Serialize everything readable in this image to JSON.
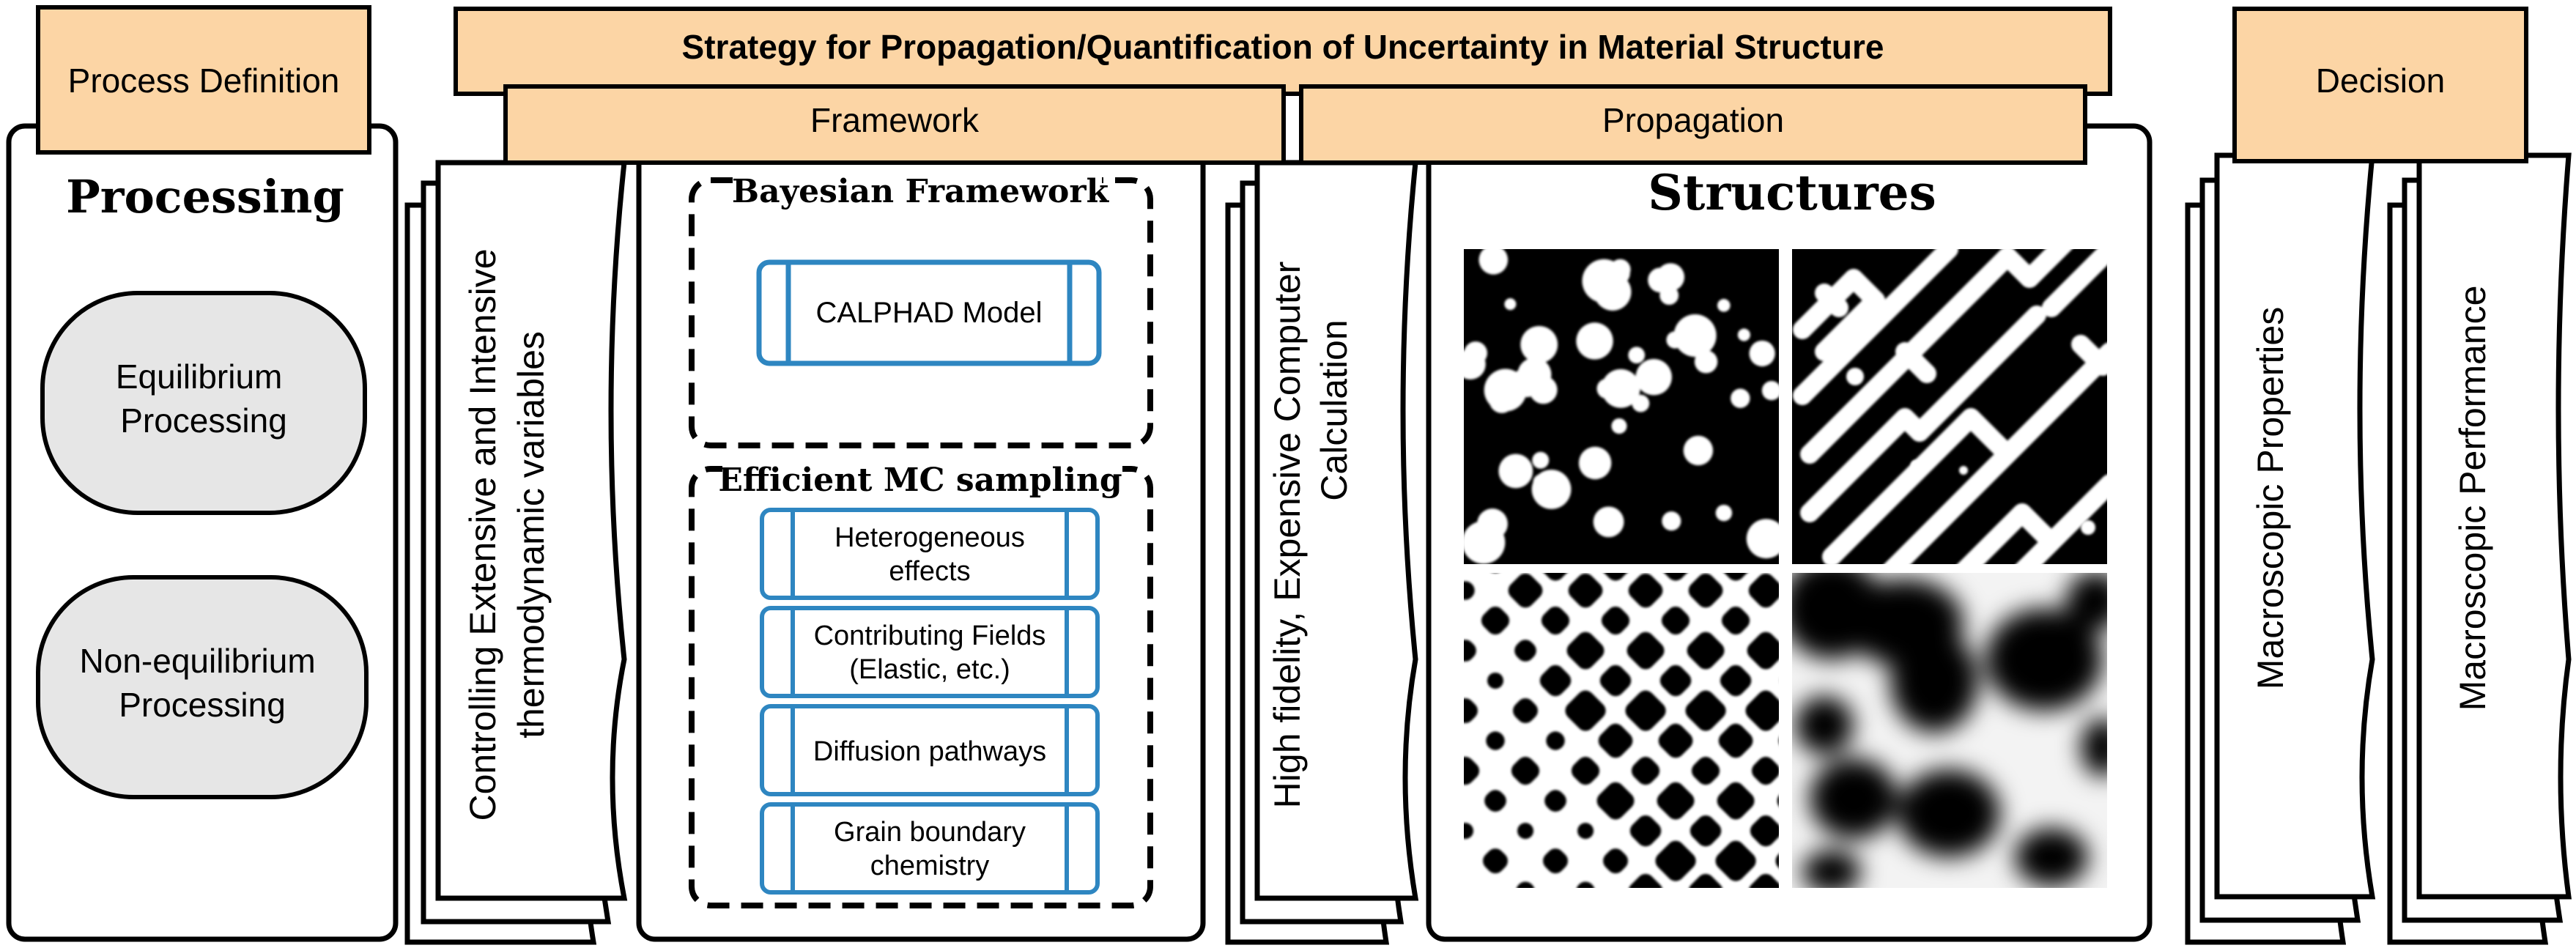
{
  "header": {
    "process_definition": "Process Definition",
    "strategy_title": "Strategy for Propagation/Quantification of Uncertainty in Material Structure",
    "framework": "Framework",
    "propagation": "Propagation",
    "decision": "Decision"
  },
  "processing": {
    "title": "Processing",
    "items": [
      "Equilibrium Processing",
      "Non-equilibrium Processing"
    ]
  },
  "controlling_variables": {
    "line1": "Controlling Extensive and Intensive",
    "line2": "thermodynamic variables"
  },
  "bayesian": {
    "title": "Bayesian Framework",
    "model": "CALPHAD Model"
  },
  "mc_sampling": {
    "title": "Efficient MC sampling",
    "items": [
      [
        "Heterogeneous",
        "effects"
      ],
      [
        "Contributing Fields",
        "(Elastic, etc.)"
      ],
      [
        "Diffusion pathways"
      ],
      [
        "Grain boundary",
        "chemistry"
      ]
    ]
  },
  "high_fidelity": {
    "line1": "High fidelity, Expensive Computer",
    "line2": "Calculation"
  },
  "structures": {
    "title": "Structures"
  },
  "macroscopic_properties": "Macroscopic Properties",
  "macroscopic_performance": "Macroscopic Performance",
  "colors": {
    "header_fill": "#fcd5a5",
    "box_stroke": "#000000",
    "process_fill": "#e6e6e6",
    "mc_stroke": "#2e86c1",
    "structure_black": "#000000",
    "structure_white": "#ffffff"
  }
}
